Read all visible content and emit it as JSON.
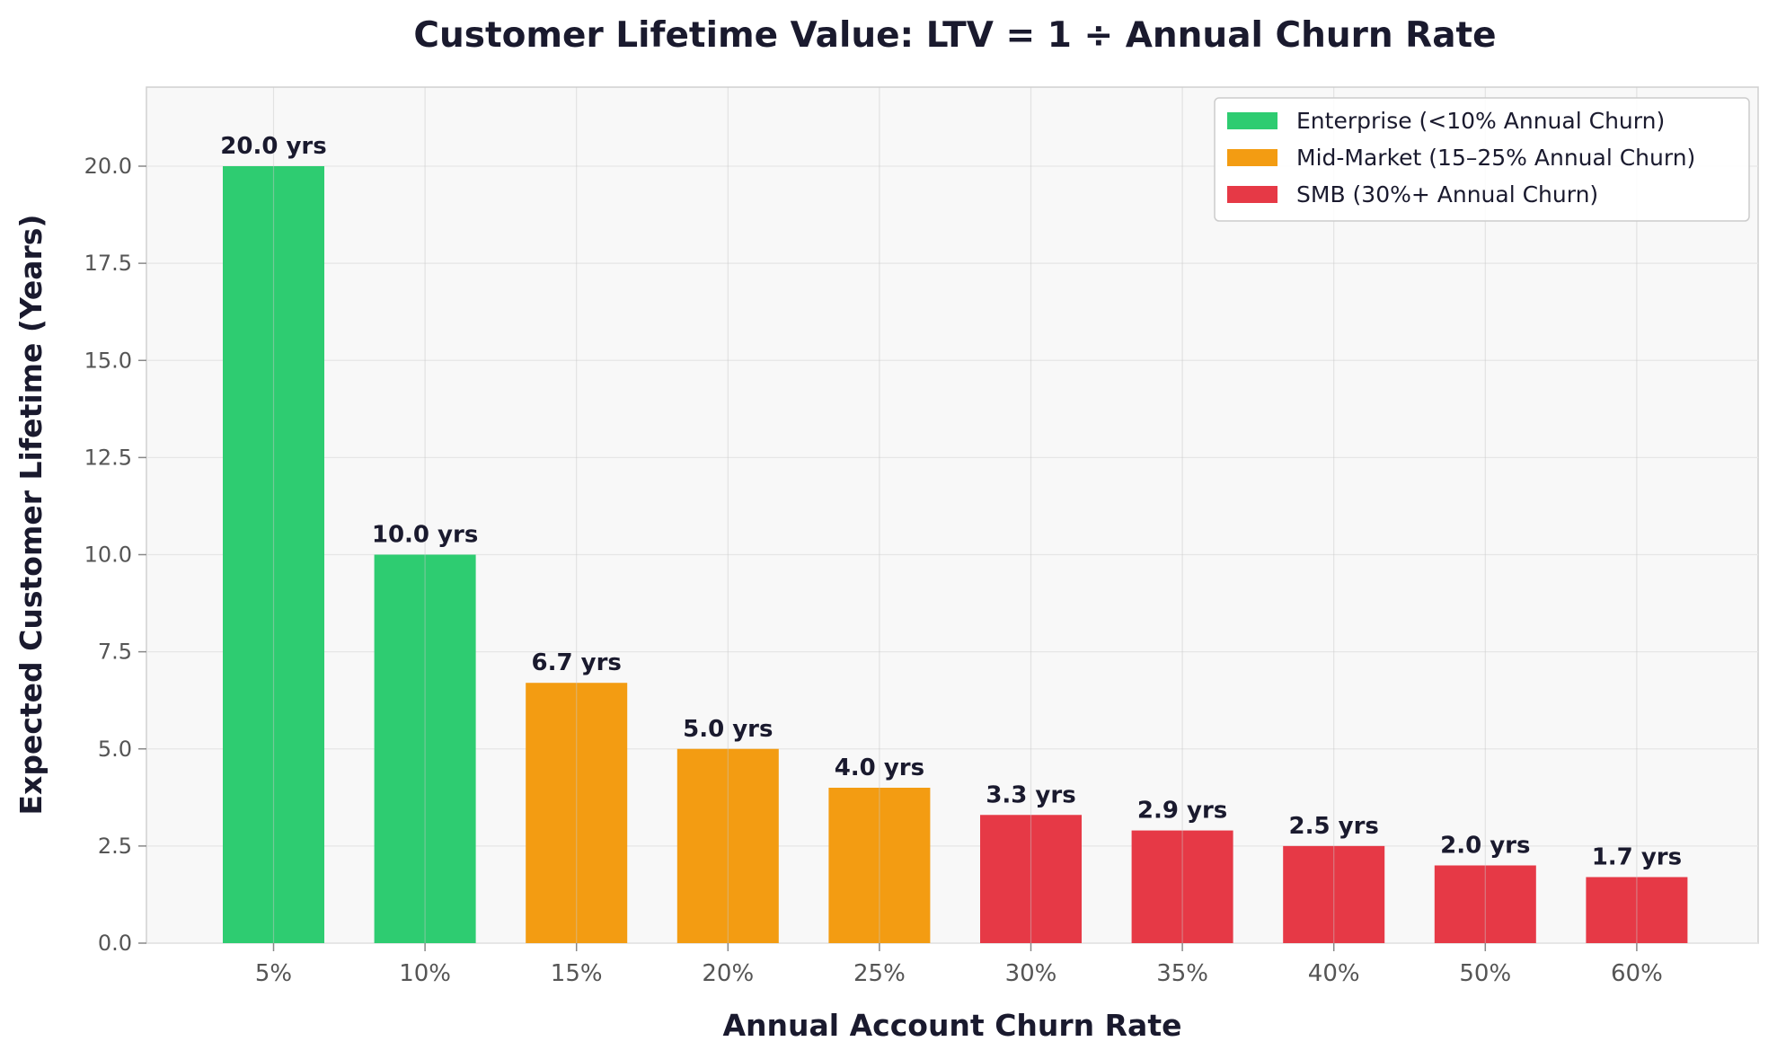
{
  "chart_data": {
    "type": "bar",
    "title": "Customer Lifetime Value: LTV = 1 ÷ Annual Churn Rate",
    "xlabel": "Annual Account Churn Rate",
    "ylabel": "Expected Customer Lifetime (Years)",
    "categories": [
      "5%",
      "10%",
      "15%",
      "20%",
      "25%",
      "30%",
      "35%",
      "40%",
      "50%",
      "60%"
    ],
    "values": [
      20.0,
      10.0,
      6.7,
      5.0,
      4.0,
      3.3,
      2.9,
      2.5,
      2.0,
      1.7
    ],
    "bar_labels": [
      "20.0 yrs",
      "10.0 yrs",
      "6.7 yrs",
      "5.0 yrs",
      "4.0 yrs",
      "3.3 yrs",
      "2.9 yrs",
      "2.5 yrs",
      "2.0 yrs",
      "1.7 yrs"
    ],
    "segment_of_bar": [
      0,
      0,
      1,
      1,
      1,
      2,
      2,
      2,
      2,
      2
    ],
    "segments": [
      {
        "name": "Enterprise (<10% Annual Churn)",
        "color": "#2ecc71"
      },
      {
        "name": "Mid-Market (15–25% Annual Churn)",
        "color": "#f39c12"
      },
      {
        "name": "SMB (30%+ Annual Churn)",
        "color": "#e63946"
      }
    ],
    "ylim": [
      0,
      22
    ],
    "yticks": [
      0.0,
      2.5,
      5.0,
      7.5,
      10.0,
      12.5,
      15.0,
      17.5,
      20.0
    ],
    "ytick_labels": [
      "0.0",
      "2.5",
      "5.0",
      "7.5",
      "10.0",
      "12.5",
      "15.0",
      "17.5",
      "20.0"
    ],
    "grid": true,
    "legend_position": "top-right"
  }
}
